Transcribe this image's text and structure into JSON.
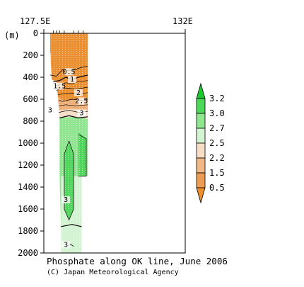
{
  "chart_data": {
    "type": "heatmap",
    "title": "Phosphate along OK line, June 2006",
    "credit": "(C) Japan Meteorological Agency",
    "y_unit_label": "(m)",
    "x_tick_labels": [
      "127.5E",
      "132E"
    ],
    "x_range": [
      127.5,
      132
    ],
    "ylim": [
      0,
      2000
    ],
    "y_ticks": [
      0,
      200,
      400,
      600,
      800,
      1000,
      1200,
      1400,
      1600,
      1800,
      2000
    ],
    "contour_labels": [
      {
        "text": "0.5",
        "x": 128.3,
        "depth": 370
      },
      {
        "text": "1",
        "x": 128.4,
        "depth": 440
      },
      {
        "text": "1.5",
        "x": 128.0,
        "depth": 500
      },
      {
        "text": "2",
        "x": 128.6,
        "depth": 560
      },
      {
        "text": "2.5",
        "x": 128.7,
        "depth": 635
      },
      {
        "text": "3",
        "x": 127.7,
        "depth": 720
      },
      {
        "text": "3",
        "x": 128.7,
        "depth": 745
      },
      {
        "text": "3",
        "x": 128.2,
        "depth": 1535
      },
      {
        "text": "3",
        "x": 128.2,
        "depth": 1945
      }
    ],
    "colorbar": {
      "ticks": [
        "3.2",
        "3.0",
        "2.7",
        "2.5",
        "2.2",
        "1.5",
        "0.5"
      ],
      "colors": [
        "#1aca2e",
        "#4ed85a",
        "#8ee68e",
        "#d2f4d0",
        "#f8ddc6",
        "#f0b884",
        "#ec9c54",
        "#ed8f2c"
      ]
    },
    "water_mass_colors": {
      "surface": "#ed8f2c",
      "thermocline": "#f2ae72",
      "transition": "#f8ddc6",
      "deep_light": "#d2f4d0",
      "deep_mid": "#8ee68e",
      "deep_core": "#4ed85a"
    }
  }
}
